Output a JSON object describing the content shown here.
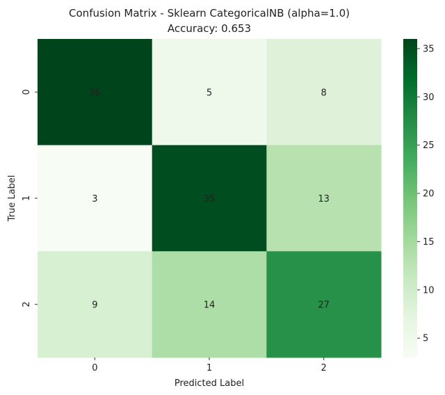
{
  "chart_data": {
    "type": "heatmap",
    "title": "Confusion Matrix - Sklearn CategoricalNB (alpha=1.0)",
    "subtitle": "Accuracy: 0.653",
    "xlabel": "Predicted Label",
    "ylabel": "True Label",
    "x_categories": [
      "0",
      "1",
      "2"
    ],
    "y_categories": [
      "0",
      "1",
      "2"
    ],
    "matrix": [
      [
        36,
        5,
        8
      ],
      [
        3,
        35,
        13
      ],
      [
        9,
        14,
        27
      ]
    ],
    "colormap": "Greens",
    "colorbar": {
      "min": 3,
      "max": 36,
      "ticks": [
        5,
        10,
        15,
        20,
        25,
        30,
        35
      ]
    },
    "text_color_dark": "#262626",
    "text_color_light": "#ffffff"
  }
}
